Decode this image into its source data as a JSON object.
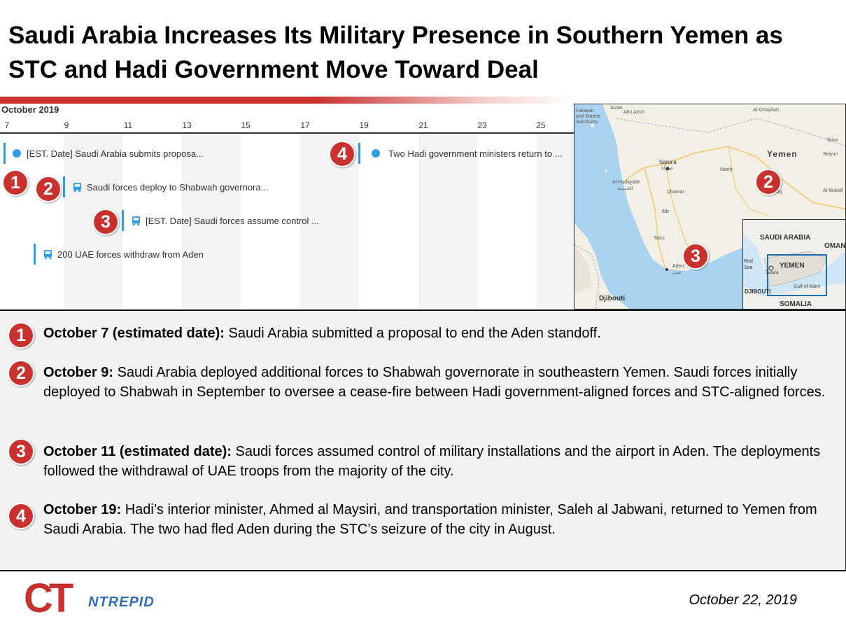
{
  "title": "Saudi Arabia Increases Its Military Presence in Southern Yemen as STC and Hadi Government Move Toward Deal",
  "timeline": {
    "month": "October 2019",
    "ticks": [
      "7",
      "9",
      "11",
      "13",
      "15",
      "17",
      "19",
      "21",
      "23",
      "25"
    ],
    "events": [
      {
        "label": "[EST. Date] Saudi Arabia submits proposa...",
        "icon": "dot-icon"
      },
      {
        "label": "Saudi forces deploy to Shabwah governora...",
        "icon": "bus-icon"
      },
      {
        "label": "[EST. Date] Saudi forces assume control ...",
        "icon": "bus-icon"
      },
      {
        "label": "200 UAE forces withdraw from Aden",
        "icon": "bus-icon"
      },
      {
        "label": "Two Hadi government ministers return to ...",
        "icon": "dot-icon"
      }
    ],
    "markers": [
      "1",
      "2",
      "3",
      "4"
    ],
    "accent_color": "#2f9fe2",
    "marker_color": "#c8312e"
  },
  "map": {
    "labels": {
      "yemen": "Yemen",
      "sanaa": "Sana'a",
      "sanaa_ar": "صنعاء",
      "hudaydah": "Al Hudaydah",
      "hudaydah_ar": "الحديدة",
      "dhamar": "Dhamar",
      "ibb": "Ibb",
      "taizz": "Taizz",
      "aden": "Aden",
      "aden_ar": "عدن",
      "djibouti": "Djibouti",
      "jazan": "Jazan",
      "farasan": "Farasan and Marine Sanctuary",
      "abu_arish": "Abu Arish",
      "al_mukalla": "Al Mukall",
      "marib": "Marib",
      "ataq": "Ataq",
      "al_ghaydah": "Al-Ghaydah",
      "tarim": "Tarim",
      "seiyun": "Seiyun"
    },
    "markers": [
      "2",
      "3"
    ],
    "inset": {
      "saudi": "SAUDI ARABIA",
      "oman": "OMAN",
      "yemen": "YEMEN",
      "sanaa": "Sana'a",
      "red_sea": "Red Sea",
      "gulf": "Gulf of Aden",
      "djibouti": "DJIBOUTI",
      "somalia": "SOMALIA"
    }
  },
  "items": [
    {
      "num": "1",
      "head": "October 7 (estimated date):",
      "text": " Saudi Arabia submitted a proposal to end the Aden standoff."
    },
    {
      "num": "2",
      "head": "October 9:",
      "text": " Saudi Arabia deployed additional forces to Shabwah governorate in southeastern Yemen. Saudi forces initially deployed to Shabwah in September to oversee a cease-fire between Hadi government-aligned forces and STC-aligned forces."
    },
    {
      "num": "3",
      "head": "October 11 (estimated date):",
      "text": " Saudi forces assumed control of military installations and the airport in Aden. The deployments followed the withdrawal of UAE troops from the majority of the city."
    },
    {
      "num": "4",
      "head": "October 19:",
      "text": " Hadi’s interior minister, Ahmed al Maysiri, and transportation minister, Saleh al Jabwani, returned to Yemen from Saudi Arabia. The two had fled Aden during the STC’s seizure of the city in August."
    }
  ],
  "footer": {
    "logo_ct": "CT",
    "logo_ntrepid": "NTREPID",
    "date": "October 22, 2019"
  }
}
